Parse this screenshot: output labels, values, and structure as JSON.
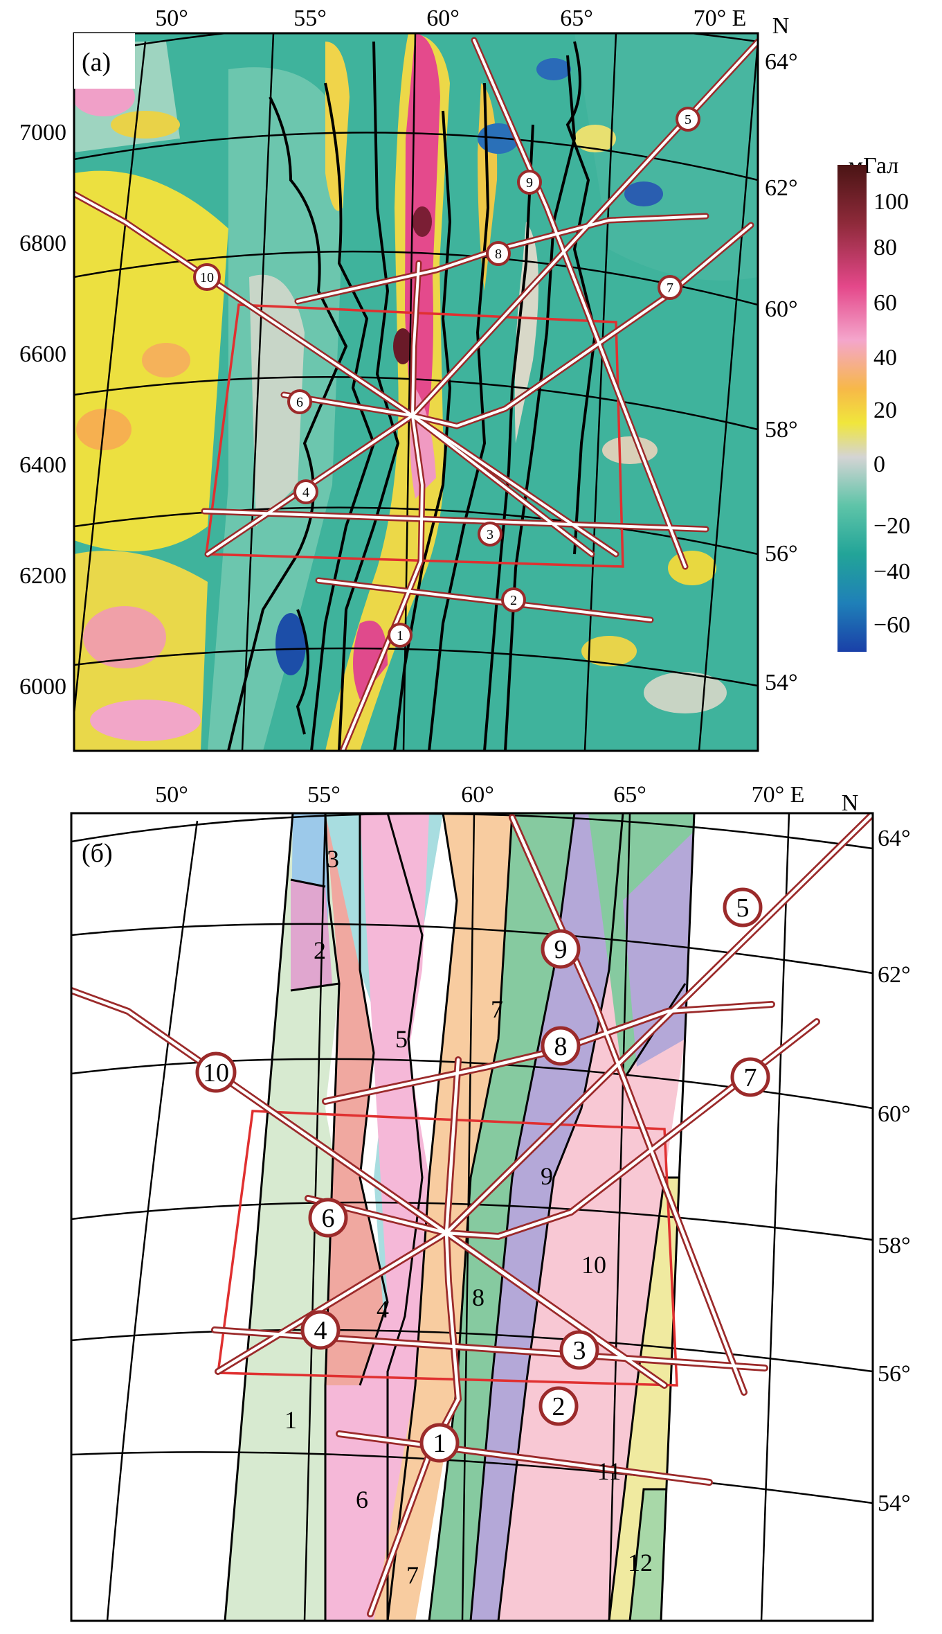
{
  "panel_a": {
    "label": "(а)",
    "lon_labels": [
      "50°",
      "55°",
      "60°",
      "65°",
      "70° E"
    ],
    "lat_labels": [
      "64°",
      "62°",
      "60°",
      "58°",
      "56°",
      "54°"
    ],
    "north_label": "N",
    "y_labels": [
      "7000",
      "6800",
      "6600",
      "6400",
      "6200",
      "6000"
    ],
    "colorbar": {
      "unit": "мГал",
      "ticks": [
        "100",
        "80",
        "60",
        "40",
        "20",
        "0",
        "−20",
        "−40",
        "−60"
      ],
      "colors": [
        "#5a1a1a",
        "#9b2a4a",
        "#e8458a",
        "#f2a0c8",
        "#f6c060",
        "#f0e040",
        "#d0d0d0",
        "#6fc8b0",
        "#27a89a",
        "#1e8fb0",
        "#1a4fa8"
      ]
    }
  },
  "panel_b": {
    "label": "(б)",
    "lon_labels": [
      "50°",
      "55°",
      "60°",
      "65°",
      "70° E"
    ],
    "lat_labels": [
      "64°",
      "62°",
      "60°",
      "58°",
      "56°",
      "54°"
    ],
    "north_label": "N",
    "zones": [
      {
        "label": "1",
        "color": "#d7ead0"
      },
      {
        "label": "2",
        "color": "#e0a6cf"
      },
      {
        "label": "3",
        "color": "#9cc9ea"
      },
      {
        "label": "4",
        "color": "#f0a8a0"
      },
      {
        "label": "5",
        "color": "#a8dde0"
      },
      {
        "label": "6",
        "color": "#f5b8d8"
      },
      {
        "label": "7",
        "color": "#f8cca0"
      },
      {
        "label": "8",
        "color": "#86caa0"
      },
      {
        "label": "9",
        "color": "#b4a8d8"
      },
      {
        "label": "10",
        "color": "#f8c8d4"
      },
      {
        "label": "11",
        "color": "#f0eaa0"
      },
      {
        "label": "12",
        "color": "#a8d8a8"
      }
    ]
  },
  "profiles": [
    "1",
    "2",
    "3",
    "4",
    "5",
    "6",
    "7",
    "8",
    "9",
    "10"
  ],
  "colors": {
    "profile": "#9b2a2a",
    "frame": "#e03030"
  }
}
